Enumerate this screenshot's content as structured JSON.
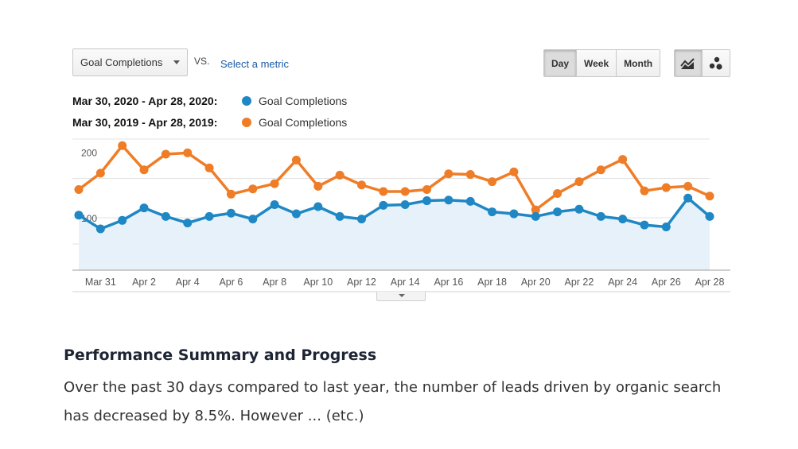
{
  "controls": {
    "metric_select": "Goal Completions",
    "vs_label": "VS.",
    "select_metric_link": "Select a metric",
    "period_buttons": [
      "Day",
      "Week",
      "Month"
    ],
    "active_period": "Day",
    "view_icons": [
      "line-chart-icon",
      "motion-chart-icon"
    ]
  },
  "legend": [
    {
      "range": "Mar 30, 2020 - Apr 28, 2020:",
      "series": "Goal Completions",
      "color": "#1f87c4"
    },
    {
      "range": "Mar 30, 2019 - Apr 28, 2019:",
      "series": "Goal Completions",
      "color": "#ef7d27"
    }
  ],
  "chart_data": {
    "type": "line",
    "x": [
      "Mar 30",
      "Mar 31",
      "Apr 1",
      "Apr 2",
      "Apr 3",
      "Apr 4",
      "Apr 5",
      "Apr 6",
      "Apr 7",
      "Apr 8",
      "Apr 9",
      "Apr 10",
      "Apr 11",
      "Apr 12",
      "Apr 13",
      "Apr 14",
      "Apr 15",
      "Apr 16",
      "Apr 17",
      "Apr 18",
      "Apr 19",
      "Apr 20",
      "Apr 21",
      "Apr 22",
      "Apr 23",
      "Apr 24",
      "Apr 25",
      "Apr 26",
      "Apr 27",
      "Apr 28"
    ],
    "x_tick_labels": [
      "Mar 31",
      "Apr 2",
      "Apr 4",
      "Apr 6",
      "Apr 8",
      "Apr 10",
      "Apr 12",
      "Apr 14",
      "Apr 16",
      "Apr 18",
      "Apr 20",
      "Apr 22",
      "Apr 24",
      "Apr 26",
      "Apr 28"
    ],
    "y_ticks": [
      100,
      200
    ],
    "ylim": [
      20,
      220
    ],
    "grid": true,
    "series": [
      {
        "name": "Goal Completions",
        "period": "Mar 30, 2020 - Apr 28, 2020",
        "color": "#1f87c4",
        "area_fill": "#e6f1fa",
        "values": [
          104,
          83,
          96,
          115,
          102,
          92,
          102,
          107,
          98,
          120,
          106,
          117,
          102,
          98,
          119,
          120,
          126,
          127,
          125,
          109,
          106,
          102,
          109,
          113,
          102,
          98,
          89,
          86,
          130,
          102
        ]
      },
      {
        "name": "Goal Completions",
        "period": "Mar 30, 2019 - Apr 28, 2019",
        "color": "#ef7d27",
        "values": [
          143,
          168,
          210,
          173,
          197,
          199,
          176,
          136,
          144,
          152,
          188,
          148,
          165,
          150,
          140,
          140,
          143,
          167,
          166,
          155,
          170,
          112,
          137,
          155,
          173,
          189,
          141,
          146,
          148,
          133
        ]
      }
    ]
  },
  "summary": {
    "title": "Performance Summary and Progress",
    "text": "Over the past 30 days compared to last year, the number of leads driven by organic search has decreased by 8.5%. However ... (etc.)"
  }
}
